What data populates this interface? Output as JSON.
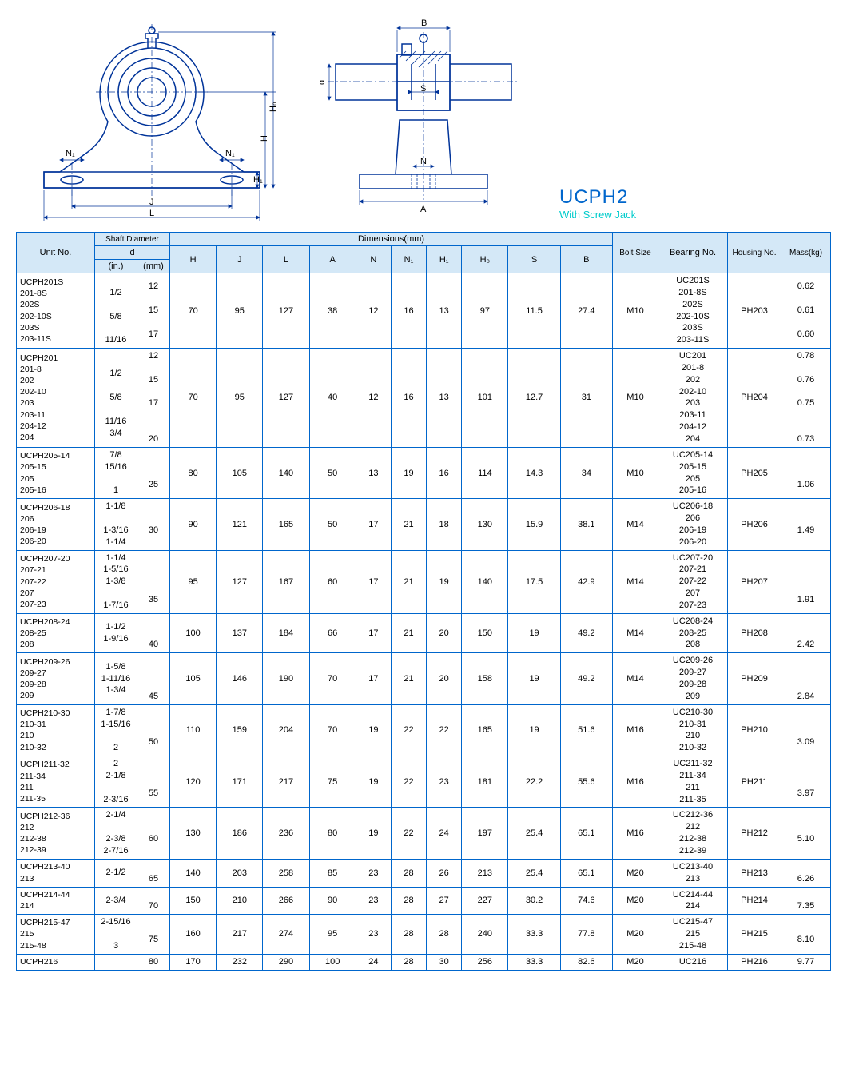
{
  "product": {
    "title": "UCPH2",
    "subtitle": "With Screw Jack"
  },
  "header": {
    "unitNo": "Unit No.",
    "shaftDia": "Shaft Diameter",
    "d": "d",
    "din": "(in.)",
    "dmm": "(mm)",
    "dims": "Dimensions(mm)",
    "boltSize": "Bolt Size",
    "bearingNo": "Bearing No.",
    "housingNo": "Housing No.",
    "mass": "Mass(kg)",
    "cols": [
      "H",
      "J",
      "L",
      "A",
      "N",
      "N₁",
      "H₁",
      "H₀",
      "S",
      "B"
    ]
  },
  "diagramLabels": {
    "N1a": "N₁",
    "N1b": "N₁",
    "J": "J",
    "L": "L",
    "H": "H",
    "H1": "H₁",
    "H0": "H₀",
    "B": "B",
    "S": "S",
    "d": "d",
    "N": "N",
    "A": "A"
  },
  "rows": [
    {
      "unit": "UCPH201S\n     201-8S\n     202S\n     202-10S\n     203S\n     203-11S",
      "din": "\n1/2\n\n5/8\n\n11/16",
      "dmm": "12\n\n15\n\n17",
      "H": "70",
      "J": "95",
      "L": "127",
      "A": "38",
      "N": "12",
      "N1": "16",
      "H1": "13",
      "H0": "97",
      "S": "11.5",
      "B": "27.4",
      "bolt": "M10",
      "bearing": "UC201S\n201-8S\n202S\n202-10S\n203S\n203-11S",
      "housing": "PH203",
      "mass": "0.62\n\n0.61\n\n0.60"
    },
    {
      "unit": "UCPH201\n     201-8\n     202\n     202-10\n     203\n     203-11\n     204-12\n     204",
      "din": "\n1/2\n\n5/8\n\n11/16\n3/4",
      "dmm": "12\n\n15\n\n17\n\n\n20",
      "H": "70",
      "J": "95",
      "L": "127",
      "A": "40",
      "N": "12",
      "N1": "16",
      "H1": "13",
      "H0": "101",
      "S": "12.7",
      "B": "31",
      "bolt": "M10",
      "bearing": "UC201\n201-8\n202\n202-10\n203\n203-11\n204-12\n204",
      "housing": "PH204",
      "mass": "0.78\n\n0.76\n\n0.75\n\n\n0.73"
    },
    {
      "unit": "UCPH205-14\n     205-15\n     205\n     205-16",
      "din": "7/8\n15/16\n\n1",
      "dmm": "\n\n25",
      "H": "80",
      "J": "105",
      "L": "140",
      "A": "50",
      "N": "13",
      "N1": "19",
      "H1": "16",
      "H0": "114",
      "S": "14.3",
      "B": "34",
      "bolt": "M10",
      "bearing": "UC205-14\n205-15\n205\n205-16",
      "housing": "PH205",
      "mass": "\n\n1.06"
    },
    {
      "unit": "UCPH206-18\n     206\n     206-19\n     206-20",
      "din": "1-1/8\n\n1-3/16\n1-1/4",
      "dmm": "\n30",
      "H": "90",
      "J": "121",
      "L": "165",
      "A": "50",
      "N": "17",
      "N1": "21",
      "H1": "18",
      "H0": "130",
      "S": "15.9",
      "B": "38.1",
      "bolt": "M14",
      "bearing": "UC206-18\n206\n206-19\n206-20",
      "housing": "PH206",
      "mass": "\n1.49"
    },
    {
      "unit": "UCPH207-20\n     207-21\n     207-22\n     207\n     207-23",
      "din": "1-1/4\n1-5/16\n1-3/8\n\n1-7/16",
      "dmm": "\n\n\n35",
      "H": "95",
      "J": "127",
      "L": "167",
      "A": "60",
      "N": "17",
      "N1": "21",
      "H1": "19",
      "H0": "140",
      "S": "17.5",
      "B": "42.9",
      "bolt": "M14",
      "bearing": "UC207-20\n207-21\n207-22\n207\n207-23",
      "housing": "PH207",
      "mass": "\n\n\n1.91"
    },
    {
      "unit": "UCPH208-24\n     208-25\n     208",
      "din": "1-1/2\n1-9/16",
      "dmm": "\n\n40",
      "H": "100",
      "J": "137",
      "L": "184",
      "A": "66",
      "N": "17",
      "N1": "21",
      "H1": "20",
      "H0": "150",
      "S": "19",
      "B": "49.2",
      "bolt": "M14",
      "bearing": "UC208-24\n208-25\n208",
      "housing": "PH208",
      "mass": "\n\n2.42"
    },
    {
      "unit": "UCPH209-26\n     209-27\n     209-28\n     209",
      "din": "1-5/8\n1-11/16\n1-3/4",
      "dmm": "\n\n\n45",
      "H": "105",
      "J": "146",
      "L": "190",
      "A": "70",
      "N": "17",
      "N1": "21",
      "H1": "20",
      "H0": "158",
      "S": "19",
      "B": "49.2",
      "bolt": "M14",
      "bearing": "UC209-26\n209-27\n209-28\n209",
      "housing": "PH209",
      "mass": "\n\n\n2.84"
    },
    {
      "unit": "UCPH210-30\n     210-31\n     210\n     210-32",
      "din": "1-7/8\n1-15/16\n\n2",
      "dmm": "\n\n50",
      "H": "110",
      "J": "159",
      "L": "204",
      "A": "70",
      "N": "19",
      "N1": "22",
      "H1": "22",
      "H0": "165",
      "S": "19",
      "B": "51.6",
      "bolt": "M16",
      "bearing": "UC210-30\n210-31\n210\n210-32",
      "housing": "PH210",
      "mass": "\n\n3.09"
    },
    {
      "unit": "UCPH211-32\n     211-34\n     211\n     211-35",
      "din": "2\n2-1/8\n\n2-3/16",
      "dmm": "\n\n55",
      "H": "120",
      "J": "171",
      "L": "217",
      "A": "75",
      "N": "19",
      "N1": "22",
      "H1": "23",
      "H0": "181",
      "S": "22.2",
      "B": "55.6",
      "bolt": "M16",
      "bearing": "UC211-32\n211-34\n211\n211-35",
      "housing": "PH211",
      "mass": "\n\n3.97"
    },
    {
      "unit": "UCPH212-36\n     212\n     212-38\n     212-39",
      "din": "2-1/4\n\n2-3/8\n2-7/16",
      "dmm": "\n60",
      "H": "130",
      "J": "186",
      "L": "236",
      "A": "80",
      "N": "19",
      "N1": "22",
      "H1": "24",
      "H0": "197",
      "S": "25.4",
      "B": "65.1",
      "bolt": "M16",
      "bearing": "UC212-36\n212\n212-38\n212-39",
      "housing": "PH212",
      "mass": "\n5.10"
    },
    {
      "unit": "UCPH213-40\n     213",
      "din": "2-1/2",
      "dmm": "\n65",
      "H": "140",
      "J": "203",
      "L": "258",
      "A": "85",
      "N": "23",
      "N1": "28",
      "H1": "26",
      "H0": "213",
      "S": "25.4",
      "B": "65.1",
      "bolt": "M20",
      "bearing": "UC213-40\n213",
      "housing": "PH213",
      "mass": "\n6.26"
    },
    {
      "unit": "UCPH214-44\n     214",
      "din": "2-3/4",
      "dmm": "\n70",
      "H": "150",
      "J": "210",
      "L": "266",
      "A": "90",
      "N": "23",
      "N1": "28",
      "H1": "27",
      "H0": "227",
      "S": "30.2",
      "B": "74.6",
      "bolt": "M20",
      "bearing": "UC214-44\n214",
      "housing": "PH214",
      "mass": "\n7.35"
    },
    {
      "unit": "UCPH215-47\n     215\n     215-48",
      "din": "2-15/16\n\n3",
      "dmm": "\n75",
      "H": "160",
      "J": "217",
      "L": "274",
      "A": "95",
      "N": "23",
      "N1": "28",
      "H1": "28",
      "H0": "240",
      "S": "33.3",
      "B": "77.8",
      "bolt": "M20",
      "bearing": "UC215-47\n215\n215-48",
      "housing": "PH215",
      "mass": "\n8.10"
    },
    {
      "unit": "UCPH216",
      "din": "",
      "dmm": "80",
      "H": "170",
      "J": "232",
      "L": "290",
      "A": "100",
      "N": "24",
      "N1": "28",
      "H1": "30",
      "H0": "256",
      "S": "33.3",
      "B": "82.6",
      "bolt": "M20",
      "bearing": "UC216",
      "housing": "PH216",
      "mass": "9.77"
    }
  ]
}
